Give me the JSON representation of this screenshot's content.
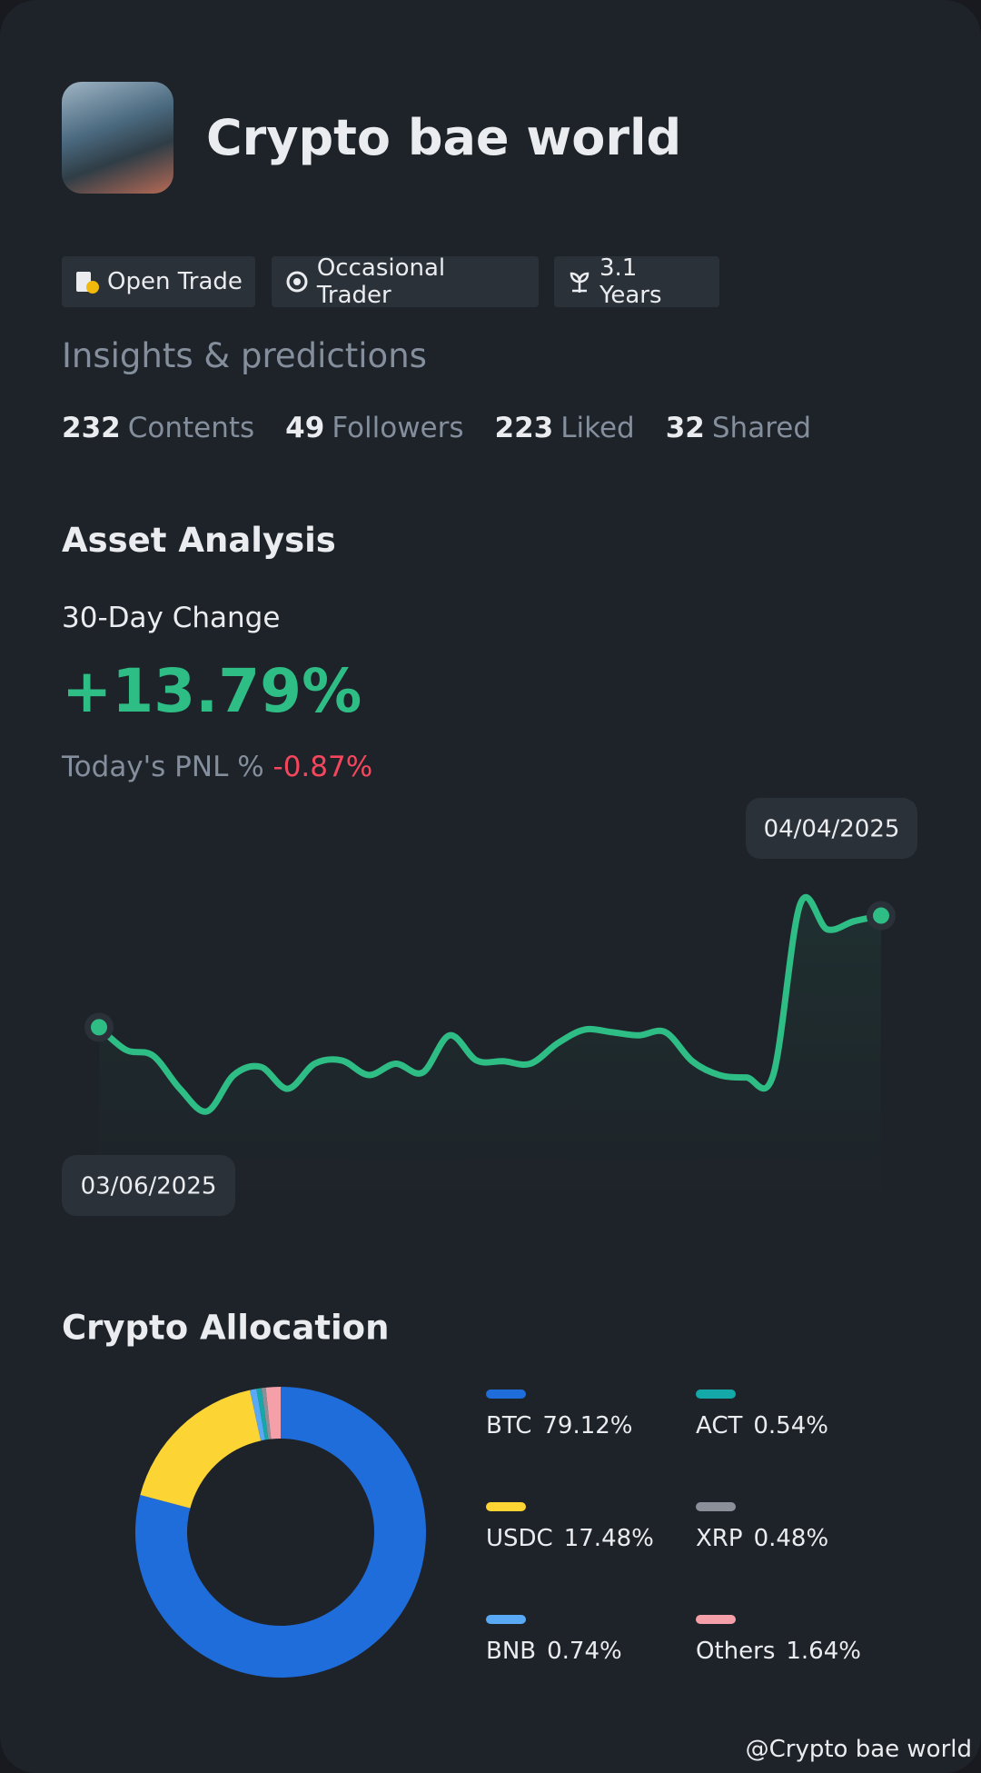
{
  "profile": {
    "name": "Crypto bae world",
    "tags": [
      "Open Trade",
      "Occasional Trader",
      "3.1 Years"
    ],
    "bio": "Insights & predictions",
    "stats": [
      {
        "value": 232,
        "label": "Contents"
      },
      {
        "value": 49,
        "label": "Followers"
      },
      {
        "value": 223,
        "label": "Liked"
      },
      {
        "value": 32,
        "label": "Shared"
      }
    ]
  },
  "asset_analysis": {
    "title": "Asset Analysis",
    "change_label": "30-Day Change",
    "change": "+13.79%",
    "pnl_label": "Today's PNL %",
    "pnl": "-0.87%"
  },
  "chart_data": [
    {
      "type": "line",
      "color": "#2ebd85",
      "categories": [
        "03/06/2025",
        null,
        null,
        null,
        null,
        null,
        null,
        null,
        null,
        null,
        null,
        null,
        null,
        null,
        null,
        null,
        null,
        null,
        null,
        null,
        null,
        null,
        null,
        null,
        null,
        null,
        null,
        null,
        null,
        "04/04/2025"
      ],
      "values": [
        0,
        -2.8,
        -3.5,
        -7.6,
        -10.4,
        -5.9,
        -4.9,
        -7.6,
        -4.5,
        -4.1,
        -5.9,
        -4.5,
        -5.6,
        -1.0,
        -4.1,
        -4.2,
        -4.5,
        -2.0,
        -0.3,
        -0.6,
        -1.0,
        -0.6,
        -4.2,
        -5.9,
        -6.2,
        -5.9,
        15.2,
        12.1,
        13.1,
        13.79
      ]
    },
    {
      "type": "pie",
      "title": "Crypto Allocation",
      "categories": [
        "BTC",
        "USDC",
        "BNB",
        "ACT",
        "XRP",
        "Others"
      ],
      "values": [
        79.12,
        17.48,
        0.74,
        0.54,
        0.48,
        1.64
      ],
      "value_labels": [
        "79.12%",
        "17.48%",
        "0.74%",
        "0.54%",
        "0.48%",
        "1.64%"
      ],
      "colors": [
        "#1f6ddb",
        "#fcd535",
        "#5aa9f5",
        "#14a8a8",
        "#8a8f99",
        "#f5a0a8"
      ]
    }
  ],
  "watermark": "@Crypto bae world"
}
